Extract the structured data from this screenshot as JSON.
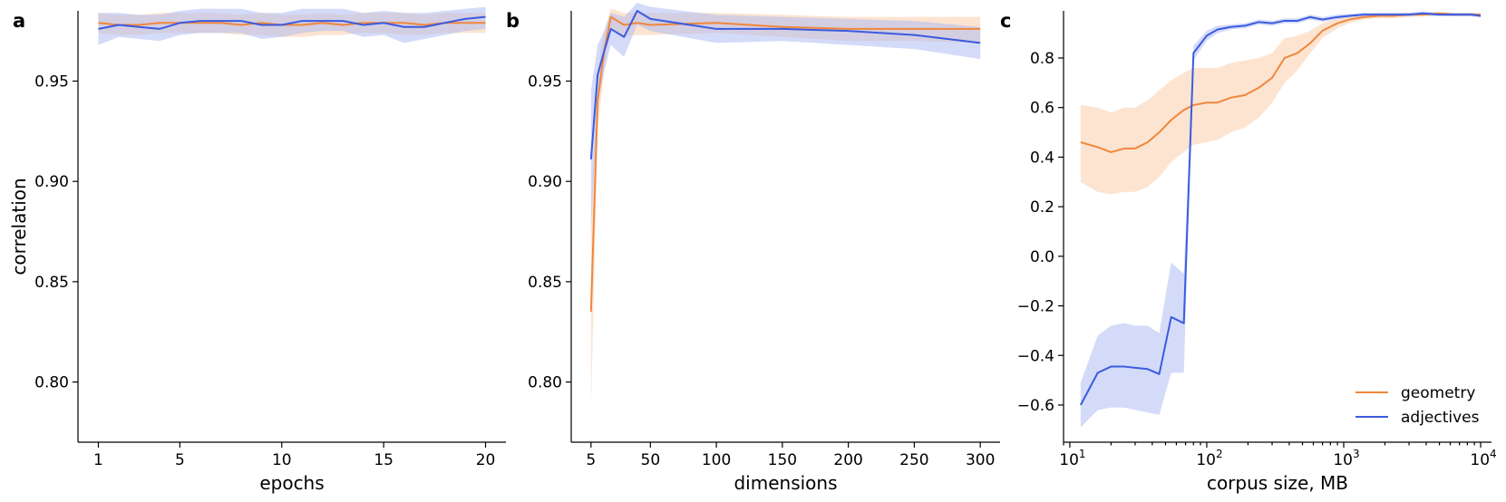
{
  "colors": {
    "geometry": "#f0873c",
    "adjectives": "#3b5be0",
    "geometry_band": "#f9c9a3",
    "adjectives_band": "#a9b8f3"
  },
  "chart_data": [
    {
      "type": "line",
      "panel_label": "a",
      "xlabel": "epochs",
      "ylabel": "correlation",
      "xscale": "linear",
      "xlim": [
        0,
        21
      ],
      "ylim": [
        0.77,
        0.985
      ],
      "xticks": [
        1,
        5,
        10,
        15,
        20
      ],
      "xtick_labels": [
        "1",
        "5",
        "10",
        "15",
        "20"
      ],
      "yticks": [
        0.8,
        0.85,
        0.9,
        0.95
      ],
      "ytick_labels": [
        "0.80",
        "0.85",
        "0.90",
        "0.95"
      ],
      "series": [
        {
          "name": "geometry",
          "x": [
            1,
            2,
            3,
            4,
            5,
            6,
            7,
            8,
            9,
            10,
            11,
            12,
            13,
            14,
            15,
            16,
            17,
            18,
            19,
            20
          ],
          "y": [
            0.979,
            0.978,
            0.978,
            0.979,
            0.979,
            0.979,
            0.979,
            0.978,
            0.979,
            0.978,
            0.978,
            0.979,
            0.978,
            0.979,
            0.979,
            0.979,
            0.978,
            0.979,
            0.979,
            0.979
          ],
          "lower": [
            0.974,
            0.973,
            0.973,
            0.974,
            0.974,
            0.974,
            0.974,
            0.973,
            0.973,
            0.972,
            0.972,
            0.973,
            0.973,
            0.974,
            0.974,
            0.973,
            0.973,
            0.974,
            0.974,
            0.974
          ],
          "upper": [
            0.984,
            0.983,
            0.983,
            0.984,
            0.984,
            0.984,
            0.984,
            0.983,
            0.984,
            0.983,
            0.983,
            0.984,
            0.983,
            0.984,
            0.984,
            0.984,
            0.983,
            0.984,
            0.984,
            0.984
          ]
        },
        {
          "name": "adjectives",
          "x": [
            1,
            2,
            3,
            4,
            5,
            6,
            7,
            8,
            9,
            10,
            11,
            12,
            13,
            14,
            15,
            16,
            17,
            18,
            19,
            20
          ],
          "y": [
            0.976,
            0.978,
            0.977,
            0.976,
            0.979,
            0.98,
            0.98,
            0.98,
            0.978,
            0.978,
            0.98,
            0.98,
            0.98,
            0.978,
            0.979,
            0.977,
            0.977,
            0.979,
            0.981,
            0.982
          ],
          "lower": [
            0.968,
            0.972,
            0.971,
            0.97,
            0.973,
            0.974,
            0.974,
            0.974,
            0.971,
            0.972,
            0.974,
            0.975,
            0.975,
            0.972,
            0.973,
            0.969,
            0.971,
            0.973,
            0.975,
            0.976
          ],
          "upper": [
            0.984,
            0.984,
            0.983,
            0.983,
            0.985,
            0.986,
            0.986,
            0.986,
            0.984,
            0.984,
            0.986,
            0.986,
            0.986,
            0.984,
            0.985,
            0.984,
            0.984,
            0.985,
            0.986,
            0.987
          ]
        }
      ]
    },
    {
      "type": "line",
      "panel_label": "b",
      "xlabel": "dimensions",
      "ylabel": "",
      "xscale": "linear",
      "xlim": [
        -10,
        315
      ],
      "ylim": [
        0.77,
        0.985
      ],
      "xticks": [
        5,
        50,
        100,
        150,
        200,
        250,
        300
      ],
      "xtick_labels": [
        "5",
        "50",
        "100",
        "150",
        "200",
        "250",
        "300"
      ],
      "yticks": [
        0.8,
        0.85,
        0.9,
        0.95
      ],
      "ytick_labels": [
        "0.80",
        "0.85",
        "0.90",
        "0.95"
      ],
      "series": [
        {
          "name": "geometry",
          "x": [
            5,
            10,
            15,
            20,
            30,
            40,
            50,
            100,
            150,
            200,
            250,
            300
          ],
          "y": [
            0.835,
            0.94,
            0.965,
            0.982,
            0.978,
            0.979,
            0.978,
            0.979,
            0.977,
            0.976,
            0.976,
            0.976
          ],
          "lower": [
            0.786,
            0.925,
            0.955,
            0.976,
            0.972,
            0.973,
            0.973,
            0.974,
            0.972,
            0.97,
            0.97,
            0.969
          ],
          "upper": [
            0.884,
            0.955,
            0.975,
            0.986,
            0.984,
            0.984,
            0.984,
            0.984,
            0.983,
            0.982,
            0.982,
            0.982
          ]
        },
        {
          "name": "adjectives",
          "x": [
            5,
            10,
            15,
            20,
            30,
            40,
            50,
            100,
            150,
            200,
            250,
            300
          ],
          "y": [
            0.911,
            0.953,
            0.965,
            0.976,
            0.972,
            0.985,
            0.981,
            0.976,
            0.976,
            0.975,
            0.973,
            0.969
          ],
          "lower": [
            0.876,
            0.938,
            0.955,
            0.968,
            0.962,
            0.978,
            0.975,
            0.969,
            0.97,
            0.968,
            0.966,
            0.961
          ],
          "upper": [
            0.945,
            0.968,
            0.975,
            0.984,
            0.982,
            0.989,
            0.987,
            0.983,
            0.982,
            0.981,
            0.98,
            0.977
          ]
        }
      ]
    },
    {
      "type": "line",
      "panel_label": "c",
      "xlabel": "corpus size, MB",
      "ylabel": "",
      "xscale": "log",
      "xlim": [
        9,
        12000
      ],
      "ylim": [
        -0.75,
        0.99
      ],
      "xticks": [
        10,
        100,
        1000,
        10000
      ],
      "xtick_labels": [
        "10",
        "10",
        "10",
        "10"
      ],
      "xtick_exponents": [
        "1",
        "2",
        "3",
        "4"
      ],
      "yticks": [
        -0.6,
        -0.4,
        -0.2,
        0.0,
        0.2,
        0.4,
        0.6,
        0.8
      ],
      "ytick_labels": [
        "−0.6",
        "−0.4",
        "−0.2",
        "0.0",
        "0.2",
        "0.4",
        "0.6",
        "0.8"
      ],
      "legend": {
        "position": "bottom-right",
        "entries": [
          "geometry",
          "adjectives"
        ]
      },
      "series": [
        {
          "name": "geometry",
          "x": [
            12,
            16,
            20,
            25,
            30,
            37,
            45,
            55,
            68,
            80,
            100,
            120,
            150,
            190,
            240,
            300,
            370,
            460,
            570,
            700,
            900,
            1100,
            1400,
            1800,
            2300,
            3000,
            3800,
            5000,
            6500,
            8500,
            10000
          ],
          "y": [
            0.46,
            0.44,
            0.42,
            0.435,
            0.435,
            0.46,
            0.5,
            0.55,
            0.59,
            0.61,
            0.62,
            0.62,
            0.64,
            0.65,
            0.68,
            0.72,
            0.8,
            0.82,
            0.86,
            0.91,
            0.94,
            0.955,
            0.965,
            0.97,
            0.97,
            0.975,
            0.975,
            0.98,
            0.975,
            0.975,
            0.975
          ],
          "lower": [
            0.3,
            0.26,
            0.25,
            0.26,
            0.26,
            0.28,
            0.32,
            0.38,
            0.42,
            0.45,
            0.46,
            0.47,
            0.5,
            0.52,
            0.56,
            0.62,
            0.7,
            0.75,
            0.82,
            0.88,
            0.92,
            0.94,
            0.955,
            0.96,
            0.96,
            0.965,
            0.967,
            0.97,
            0.968,
            0.968,
            0.968
          ],
          "upper": [
            0.61,
            0.6,
            0.58,
            0.6,
            0.6,
            0.63,
            0.67,
            0.71,
            0.74,
            0.76,
            0.76,
            0.76,
            0.78,
            0.79,
            0.8,
            0.82,
            0.88,
            0.89,
            0.91,
            0.94,
            0.96,
            0.97,
            0.975,
            0.98,
            0.98,
            0.982,
            0.982,
            0.985,
            0.982,
            0.982,
            0.982
          ]
        },
        {
          "name": "adjectives",
          "x": [
            12,
            16,
            20,
            25,
            30,
            37,
            45,
            55,
            68,
            80,
            100,
            120,
            150,
            190,
            240,
            300,
            370,
            460,
            570,
            700,
            900,
            1100,
            1400,
            1800,
            2300,
            3000,
            3800,
            5000,
            6500,
            8500,
            10000
          ],
          "y": [
            -0.6,
            -0.47,
            -0.445,
            -0.445,
            -0.45,
            -0.455,
            -0.475,
            -0.245,
            -0.27,
            0.82,
            0.89,
            0.915,
            0.925,
            0.93,
            0.945,
            0.94,
            0.95,
            0.95,
            0.965,
            0.955,
            0.965,
            0.97,
            0.975,
            0.975,
            0.975,
            0.975,
            0.98,
            0.975,
            0.975,
            0.975,
            0.97
          ],
          "lower": [
            -0.69,
            -0.62,
            -0.61,
            -0.61,
            -0.62,
            -0.63,
            -0.64,
            -0.47,
            -0.47,
            0.79,
            0.87,
            0.9,
            0.915,
            0.92,
            0.935,
            0.93,
            0.94,
            0.94,
            0.955,
            0.946,
            0.956,
            0.962,
            0.967,
            0.968,
            0.968,
            0.968,
            0.972,
            0.968,
            0.968,
            0.968,
            0.963
          ],
          "upper": [
            -0.51,
            -0.32,
            -0.28,
            -0.27,
            -0.28,
            -0.28,
            -0.31,
            -0.025,
            -0.07,
            0.85,
            0.91,
            0.93,
            0.935,
            0.94,
            0.955,
            0.95,
            0.96,
            0.96,
            0.975,
            0.965,
            0.975,
            0.978,
            0.983,
            0.983,
            0.983,
            0.983,
            0.988,
            0.983,
            0.983,
            0.983,
            0.978
          ]
        }
      ]
    }
  ]
}
